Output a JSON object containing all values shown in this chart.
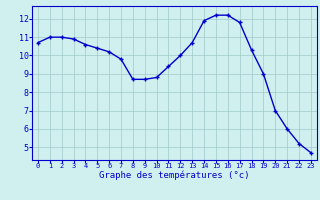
{
  "hours": [
    0,
    1,
    2,
    3,
    4,
    5,
    6,
    7,
    8,
    9,
    10,
    11,
    12,
    13,
    14,
    15,
    16,
    17,
    18,
    19,
    20,
    21,
    22,
    23
  ],
  "temps": [
    10.7,
    11.0,
    11.0,
    10.9,
    10.6,
    10.4,
    10.2,
    9.8,
    8.7,
    8.7,
    8.8,
    9.4,
    10.0,
    10.7,
    11.9,
    12.2,
    12.2,
    11.8,
    10.3,
    9.0,
    7.0,
    6.0,
    5.2,
    4.7
  ],
  "line_color": "#0000cc",
  "marker": "+",
  "bg_color": "#d0f0f0",
  "grid_color": "#a0c8c8",
  "xlabel": "Graphe des températures (°c)",
  "xlabel_color": "#0000cc",
  "axis_label_color": "#0000cc",
  "ylim": [
    4.3,
    12.7
  ],
  "yticks": [
    5,
    6,
    7,
    8,
    9,
    10,
    11,
    12
  ],
  "marker_size": 3.5,
  "line_width": 1.0
}
